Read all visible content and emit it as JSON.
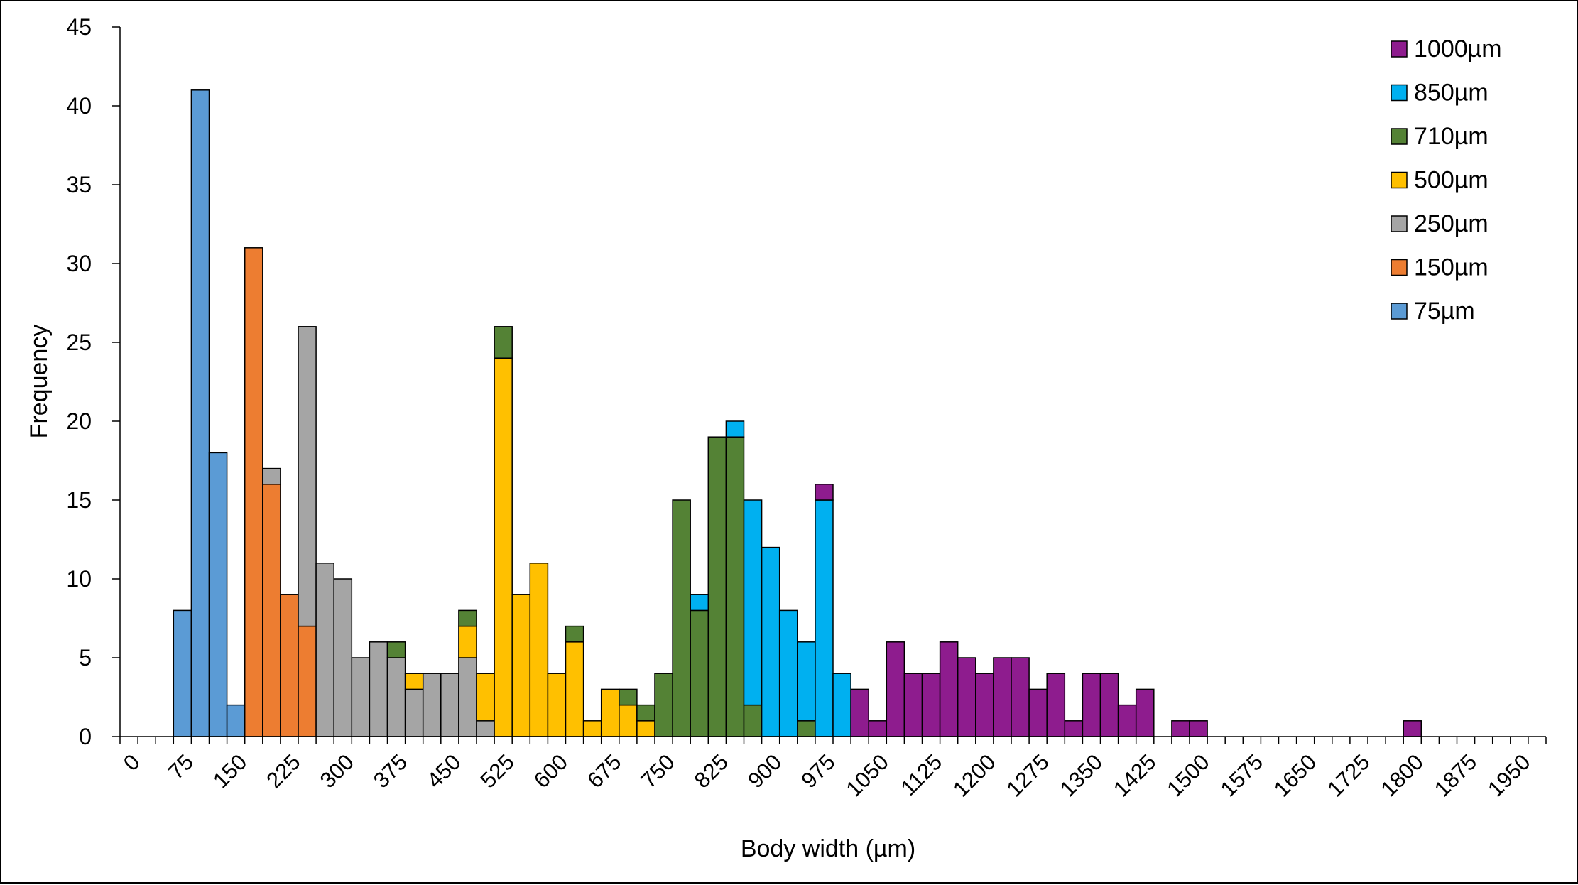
{
  "chart_data": {
    "type": "bar",
    "stacked": true,
    "title": "",
    "xlabel": "Body width (µm)",
    "ylabel": "Frequency",
    "bin_width": 25,
    "xlim": [
      0,
      2000
    ],
    "ylim": [
      0,
      45
    ],
    "x_ticks": [
      0,
      75,
      150,
      225,
      300,
      375,
      450,
      525,
      600,
      675,
      750,
      825,
      900,
      975,
      1050,
      1125,
      1200,
      1275,
      1350,
      1425,
      1500,
      1575,
      1650,
      1725,
      1800,
      1875,
      1950
    ],
    "y_ticks": [
      0,
      5,
      10,
      15,
      20,
      25,
      30,
      35,
      40,
      45
    ],
    "grid": false,
    "legend_position": "top-right",
    "legend_order": [
      "1000µm",
      "850µm",
      "710µm",
      "500µm",
      "250µm",
      "150µm",
      "75µm"
    ],
    "bins": [
      75,
      100,
      125,
      150,
      175,
      200,
      225,
      250,
      275,
      300,
      325,
      350,
      375,
      400,
      425,
      450,
      475,
      500,
      525,
      550,
      575,
      600,
      625,
      650,
      675,
      700,
      725,
      750,
      775,
      800,
      825,
      850,
      875,
      900,
      925,
      950,
      975,
      1000,
      1025,
      1050,
      1075,
      1100,
      1125,
      1150,
      1175,
      1200,
      1225,
      1250,
      1275,
      1300,
      1325,
      1350,
      1375,
      1400,
      1425,
      1450,
      1475,
      1500,
      1525,
      1550,
      1575,
      1600,
      1625,
      1650,
      1675,
      1700,
      1725,
      1750,
      1775,
      1800
    ],
    "series": [
      {
        "name": "75µm",
        "color": "#5b9bd5",
        "values": [
          8,
          41,
          18,
          2,
          0,
          0,
          0,
          0,
          0,
          0,
          0,
          0,
          0,
          0,
          0,
          0,
          0,
          0,
          0,
          0,
          0,
          0,
          0,
          0,
          0,
          0,
          0,
          0,
          0,
          0,
          0,
          0,
          0,
          0,
          0,
          0,
          0,
          0,
          0,
          0,
          0,
          0,
          0,
          0,
          0,
          0,
          0,
          0,
          0,
          0,
          0,
          0,
          0,
          0,
          0,
          0,
          0,
          0,
          0,
          0,
          0,
          0,
          0,
          0,
          0,
          0,
          0,
          0,
          0,
          0
        ]
      },
      {
        "name": "150µm",
        "color": "#ed7d31",
        "values": [
          0,
          0,
          0,
          0,
          31,
          16,
          9,
          7,
          0,
          0,
          0,
          0,
          0,
          0,
          0,
          0,
          0,
          0,
          0,
          0,
          0,
          0,
          0,
          0,
          0,
          0,
          0,
          0,
          0,
          0,
          0,
          0,
          0,
          0,
          0,
          0,
          0,
          0,
          0,
          0,
          0,
          0,
          0,
          0,
          0,
          0,
          0,
          0,
          0,
          0,
          0,
          0,
          0,
          0,
          0,
          0,
          0,
          0,
          0,
          0,
          0,
          0,
          0,
          0,
          0,
          0,
          0,
          0,
          0,
          0
        ]
      },
      {
        "name": "250µm",
        "color": "#a5a5a5",
        "values": [
          0,
          0,
          0,
          0,
          0,
          1,
          0,
          19,
          11,
          10,
          5,
          6,
          5,
          3,
          4,
          4,
          5,
          1,
          0,
          0,
          0,
          0,
          0,
          0,
          0,
          0,
          0,
          0,
          0,
          0,
          0,
          0,
          0,
          0,
          0,
          0,
          0,
          0,
          0,
          0,
          0,
          0,
          0,
          0,
          0,
          0,
          0,
          0,
          0,
          0,
          0,
          0,
          0,
          0,
          0,
          0,
          0,
          0,
          0,
          0,
          0,
          0,
          0,
          0,
          0,
          0,
          0,
          0,
          0,
          0
        ]
      },
      {
        "name": "500µm",
        "color": "#ffc000",
        "values": [
          0,
          0,
          0,
          0,
          0,
          0,
          0,
          0,
          0,
          0,
          0,
          0,
          0,
          1,
          0,
          0,
          2,
          3,
          24,
          9,
          11,
          4,
          6,
          1,
          3,
          2,
          1,
          0,
          0,
          0,
          0,
          0,
          0,
          0,
          0,
          0,
          0,
          0,
          0,
          0,
          0,
          0,
          0,
          0,
          0,
          0,
          0,
          0,
          0,
          0,
          0,
          0,
          0,
          0,
          0,
          0,
          0,
          0,
          0,
          0,
          0,
          0,
          0,
          0,
          0,
          0,
          0,
          0,
          0,
          0
        ]
      },
      {
        "name": "710µm",
        "color": "#548235",
        "values": [
          0,
          0,
          0,
          0,
          0,
          0,
          0,
          0,
          0,
          0,
          0,
          0,
          1,
          0,
          0,
          0,
          1,
          0,
          2,
          0,
          0,
          0,
          1,
          0,
          0,
          1,
          1,
          4,
          15,
          8,
          19,
          19,
          2,
          0,
          0,
          1,
          0,
          0,
          0,
          0,
          0,
          0,
          0,
          0,
          0,
          0,
          0,
          0,
          0,
          0,
          0,
          0,
          0,
          0,
          0,
          0,
          0,
          0,
          0,
          0,
          0,
          0,
          0,
          0,
          0,
          0,
          0,
          0,
          0,
          0
        ]
      },
      {
        "name": "850µm",
        "color": "#00b0f0",
        "values": [
          0,
          0,
          0,
          0,
          0,
          0,
          0,
          0,
          0,
          0,
          0,
          0,
          0,
          0,
          0,
          0,
          0,
          0,
          0,
          0,
          0,
          0,
          0,
          0,
          0,
          0,
          0,
          0,
          0,
          1,
          0,
          1,
          13,
          12,
          8,
          5,
          15,
          4,
          0,
          0,
          0,
          0,
          0,
          0,
          0,
          0,
          0,
          0,
          0,
          0,
          0,
          0,
          0,
          0,
          0,
          0,
          0,
          0,
          0,
          0,
          0,
          0,
          0,
          0,
          0,
          0,
          0,
          0,
          0,
          0
        ]
      },
      {
        "name": "1000µm",
        "color": "#8e1c8e",
        "values": [
          0,
          0,
          0,
          0,
          0,
          0,
          0,
          0,
          0,
          0,
          0,
          0,
          0,
          0,
          0,
          0,
          0,
          0,
          0,
          0,
          0,
          0,
          0,
          0,
          0,
          0,
          0,
          0,
          0,
          0,
          0,
          0,
          0,
          0,
          0,
          0,
          1,
          0,
          3,
          1,
          6,
          4,
          4,
          6,
          5,
          4,
          5,
          5,
          3,
          4,
          1,
          4,
          4,
          2,
          3,
          0,
          1,
          1,
          0,
          0,
          0,
          0,
          0,
          0,
          0,
          0,
          0,
          0,
          0,
          1
        ]
      }
    ]
  }
}
